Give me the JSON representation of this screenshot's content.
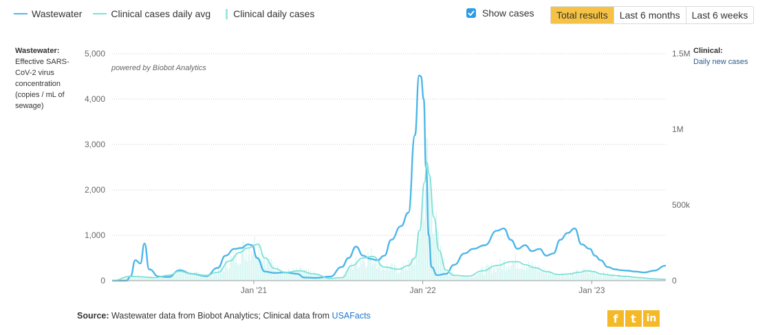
{
  "legend": [
    {
      "label": "Wastewater",
      "kind": "line",
      "color": "#4db6e8"
    },
    {
      "label": "Clinical cases daily avg",
      "kind": "line",
      "color": "#7ee0d6"
    },
    {
      "label": "Clinical daily cases",
      "kind": "bar",
      "color": "#bdf1ec"
    }
  ],
  "controls": {
    "show_cases_label": "Show cases",
    "show_cases_checked": true,
    "checkbox_color": "#2f9be6",
    "ranges": [
      "Total results",
      "Last 6 months",
      "Last 6 weeks"
    ],
    "active_range": "Total results",
    "active_color": "#f6c244"
  },
  "left_axis_title": {
    "header": "Wastewater:",
    "text": "Effective SARS-CoV-2 virus concentration (copies / mL of sewage)"
  },
  "right_axis_title": {
    "header": "Clinical:",
    "text": "Daily new cases"
  },
  "watermark": "powered by Biobot Analytics",
  "source": {
    "label": "Source:",
    "text": "Wastewater data from Biobot Analytics; Clinical data from",
    "link": "USAFacts"
  },
  "social": [
    {
      "name": "facebook-icon",
      "glyph": "f"
    },
    {
      "name": "twitter-icon",
      "glyph": "t"
    },
    {
      "name": "linkedin-icon",
      "glyph": "in"
    }
  ],
  "chart_data": {
    "type": "line",
    "x_range": [
      "2020-03-01",
      "2023-06-10"
    ],
    "x_ticks": [
      {
        "date": "2021-01-01",
        "label": "Jan '21"
      },
      {
        "date": "2022-01-01",
        "label": "Jan '22"
      },
      {
        "date": "2023-01-01",
        "label": "Jan '23"
      }
    ],
    "y_left": {
      "range": [
        0,
        5000
      ],
      "ticks": [
        0,
        1000,
        2000,
        3000,
        4000,
        5000
      ],
      "tick_labels": [
        "0",
        "1,000",
        "2,000",
        "3,000",
        "4,000",
        "5,000"
      ]
    },
    "y_right": {
      "range": [
        0,
        1500000
      ],
      "ticks": [
        0,
        500000,
        1000000,
        1500000
      ],
      "tick_labels": [
        "0",
        "500k",
        "1M",
        "1.5M"
      ]
    },
    "grid": true,
    "series": [
      {
        "name": "Wastewater",
        "axis": "left",
        "color": "#4db6e8",
        "x": [
          "2020-03-01",
          "2020-04-01",
          "2020-04-10",
          "2020-04-20",
          "2020-05-01",
          "2020-05-10",
          "2020-05-20",
          "2020-06-10",
          "2020-07-01",
          "2020-07-25",
          "2020-08-20",
          "2020-09-20",
          "2020-10-15",
          "2020-11-01",
          "2020-11-20",
          "2020-12-05",
          "2020-12-20",
          "2020-12-28",
          "2021-01-08",
          "2021-01-25",
          "2021-02-15",
          "2021-03-10",
          "2021-04-05",
          "2021-04-20",
          "2021-05-15",
          "2021-06-15",
          "2021-07-10",
          "2021-07-25",
          "2021-08-10",
          "2021-08-25",
          "2021-09-10",
          "2021-09-25",
          "2021-10-10",
          "2021-10-25",
          "2021-11-15",
          "2021-12-01",
          "2021-12-15",
          "2021-12-24",
          "2021-12-28",
          "2022-01-03",
          "2022-01-08",
          "2022-01-14",
          "2022-01-20",
          "2022-02-01",
          "2022-02-20",
          "2022-03-10",
          "2022-04-01",
          "2022-04-20",
          "2022-05-15",
          "2022-06-10",
          "2022-06-25",
          "2022-07-10",
          "2022-07-25",
          "2022-08-10",
          "2022-08-25",
          "2022-09-10",
          "2022-09-25",
          "2022-10-10",
          "2022-10-25",
          "2022-11-10",
          "2022-11-25",
          "2022-12-10",
          "2022-12-28",
          "2023-01-08",
          "2023-01-20",
          "2023-02-05",
          "2023-02-20",
          "2023-03-05",
          "2023-03-20",
          "2023-04-05",
          "2023-04-25",
          "2023-05-15",
          "2023-06-10"
        ],
        "y": [
          0,
          0,
          100,
          450,
          380,
          820,
          250,
          90,
          80,
          230,
          150,
          100,
          280,
          550,
          700,
          720,
          800,
          780,
          500,
          200,
          170,
          180,
          150,
          70,
          60,
          90,
          300,
          500,
          750,
          550,
          480,
          450,
          550,
          900,
          1200,
          1500,
          3200,
          4520,
          4500,
          4000,
          2500,
          1000,
          300,
          120,
          150,
          350,
          600,
          700,
          780,
          1100,
          1150,
          900,
          700,
          780,
          650,
          700,
          550,
          600,
          900,
          1050,
          1150,
          800,
          700,
          550,
          450,
          300,
          250,
          230,
          220,
          200,
          180,
          220,
          330
        ]
      },
      {
        "name": "Clinical cases daily avg",
        "axis": "right",
        "color": "#7ee0d6",
        "x": [
          "2020-03-01",
          "2020-04-10",
          "2020-05-01",
          "2020-06-01",
          "2020-07-01",
          "2020-07-25",
          "2020-08-20",
          "2020-09-20",
          "2020-10-15",
          "2020-11-10",
          "2020-12-01",
          "2020-12-18",
          "2021-01-10",
          "2021-01-25",
          "2021-02-15",
          "2021-03-10",
          "2021-04-10",
          "2021-05-10",
          "2021-06-15",
          "2021-07-10",
          "2021-08-01",
          "2021-08-25",
          "2021-09-15",
          "2021-10-10",
          "2021-11-10",
          "2021-12-01",
          "2021-12-15",
          "2021-12-25",
          "2022-01-05",
          "2022-01-10",
          "2022-01-15",
          "2022-01-25",
          "2022-02-05",
          "2022-02-20",
          "2022-03-10",
          "2022-04-10",
          "2022-05-10",
          "2022-06-10",
          "2022-07-10",
          "2022-07-25",
          "2022-08-10",
          "2022-09-01",
          "2022-09-25",
          "2022-10-20",
          "2022-11-15",
          "2022-12-05",
          "2022-12-20",
          "2023-01-05",
          "2023-01-20",
          "2023-02-15",
          "2023-03-15",
          "2023-04-15",
          "2023-05-15",
          "2023-06-10"
        ],
        "y": [
          0,
          28000,
          25000,
          20000,
          35000,
          62000,
          45000,
          35000,
          55000,
          130000,
          185000,
          215000,
          240000,
          150000,
          80000,
          55000,
          65000,
          45000,
          15000,
          20000,
          100000,
          150000,
          160000,
          90000,
          75000,
          100000,
          150000,
          330000,
          650000,
          780000,
          700000,
          420000,
          200000,
          70000,
          35000,
          30000,
          65000,
          100000,
          125000,
          125000,
          105000,
          85000,
          60000,
          40000,
          45000,
          55000,
          65000,
          60000,
          45000,
          35000,
          28000,
          20000,
          12000,
          8000
        ]
      }
    ],
    "daily_cases_note": "Clinical daily cases shown as thin bars closely tracking the daily average series"
  }
}
